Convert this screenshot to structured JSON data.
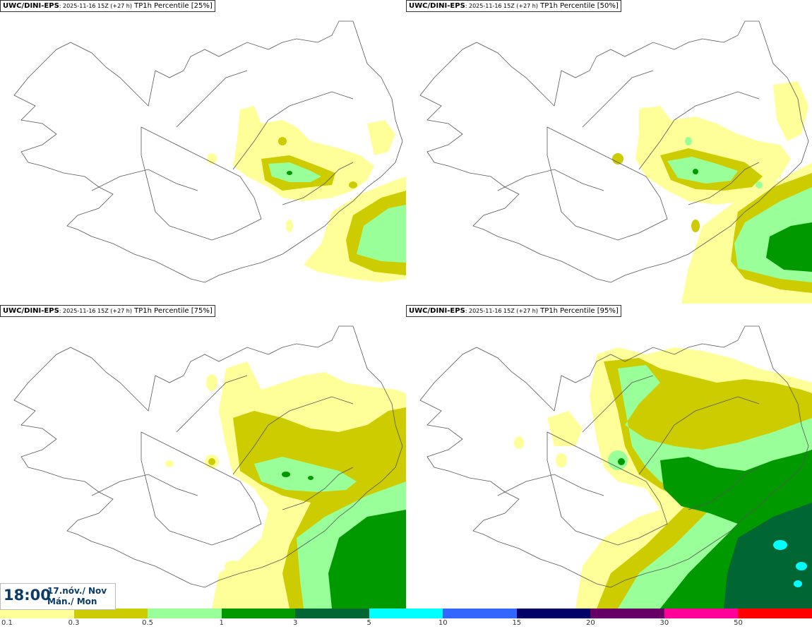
{
  "panels": [
    {
      "model": "UWC/DINI-EPS",
      "run": ": 2025-11-16 15Z (+27 h)",
      "field": " TP1h Percentile [25%]"
    },
    {
      "model": "UWC/DINI-EPS",
      "run": ": 2025-11-16 15Z (+27 h)",
      "field": " TP1h Percentile [50%]"
    },
    {
      "model": "UWC/DINI-EPS",
      "run": ": 2025-11-16 15Z (+27 h)",
      "field": " TP1h Percentile [75%]"
    },
    {
      "model": "UWC/DINI-EPS",
      "run": ": 2025-11-16 15Z (+27 h)",
      "field": " TP1h Percentile [95%]"
    }
  ],
  "valid_time": {
    "time": "18:00",
    "date_line1": "17.nóv./ Nov",
    "date_line2": "Mán./ Mon"
  },
  "legend": {
    "colors": [
      "#ffff99",
      "#cccc00",
      "#99ff99",
      "#009900",
      "#006633",
      "#00ffff",
      "#3366ff",
      "#000066",
      "#660066",
      "#ff0099",
      "#ff0000"
    ],
    "ticks": [
      "0.1",
      "0.3",
      "0.5",
      "1",
      "3",
      "5",
      "10",
      "15",
      "20",
      "30",
      "50"
    ]
  }
}
